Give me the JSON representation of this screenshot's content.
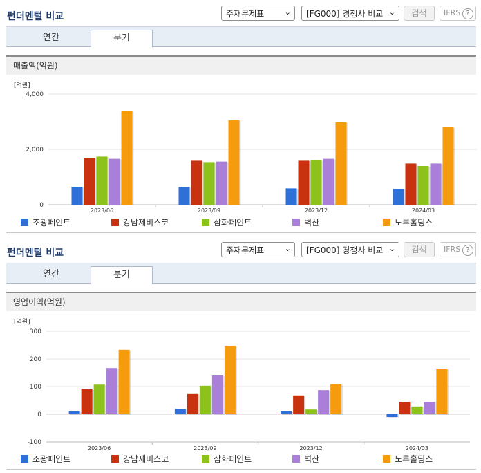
{
  "panels": [
    {
      "title": "펀더멘털 비교",
      "select1": "주재무제표",
      "select2": "[FG000] 경쟁사 비교",
      "search_label": "검색",
      "ifrs_label": "IFRS",
      "help_label": "?",
      "tabs": [
        "연간",
        "분기"
      ],
      "section_title": "매출액(억원)",
      "unit_label": "[억원]"
    },
    {
      "title": "펀더멘털 비교",
      "select1": "주재무제표",
      "select2": "[FG000] 경쟁사 비교",
      "search_label": "검색",
      "ifrs_label": "IFRS",
      "help_label": "?",
      "tabs": [
        "연간",
        "분기"
      ],
      "section_title": "영업이익(억원)",
      "unit_label": "[억원]"
    }
  ],
  "colors": {
    "조광페인트": "#2f6fd8",
    "강남제비스코": "#c8320f",
    "삼화페인트": "#8cc21b",
    "벽산": "#a97fd9",
    "노루홀딩스": "#f69b0e"
  },
  "chart_data": [
    {
      "type": "bar",
      "title": "매출액(억원)",
      "ylabel": "[억원]",
      "categories": [
        "2023/06",
        "2023/09",
        "2023/12",
        "2024/03"
      ],
      "ylim": [
        0,
        4000
      ],
      "yticks": [
        0,
        2000,
        4000
      ],
      "ytick_labels": [
        "0",
        "2,000",
        "4,000"
      ],
      "grid": true,
      "legend": "bottom",
      "series": [
        {
          "name": "조광페인트",
          "values": [
            650,
            640,
            590,
            570
          ]
        },
        {
          "name": "강남제비스코",
          "values": [
            1700,
            1590,
            1590,
            1490
          ]
        },
        {
          "name": "삼화페인트",
          "values": [
            1740,
            1540,
            1610,
            1400
          ]
        },
        {
          "name": "벽산",
          "values": [
            1660,
            1560,
            1660,
            1490
          ]
        },
        {
          "name": "노루홀딩스",
          "values": [
            3390,
            3050,
            2980,
            2800
          ]
        }
      ]
    },
    {
      "type": "bar",
      "title": "영업이익(억원)",
      "ylabel": "[억원]",
      "categories": [
        "2023/06",
        "2023/09",
        "2023/12",
        "2024/03"
      ],
      "ylim": [
        -100,
        300
      ],
      "yticks": [
        -100,
        0,
        100,
        200,
        300
      ],
      "ytick_labels": [
        "-100",
        "0",
        "100",
        "200",
        "300"
      ],
      "grid": true,
      "legend": "bottom",
      "series": [
        {
          "name": "조광페인트",
          "values": [
            10,
            20,
            10,
            -10
          ]
        },
        {
          "name": "강남제비스코",
          "values": [
            90,
            73,
            68,
            45
          ]
        },
        {
          "name": "삼화페인트",
          "values": [
            107,
            103,
            17,
            28
          ]
        },
        {
          "name": "벽산",
          "values": [
            167,
            140,
            87,
            45
          ]
        },
        {
          "name": "노루홀딩스",
          "values": [
            233,
            247,
            108,
            165
          ]
        }
      ]
    }
  ]
}
